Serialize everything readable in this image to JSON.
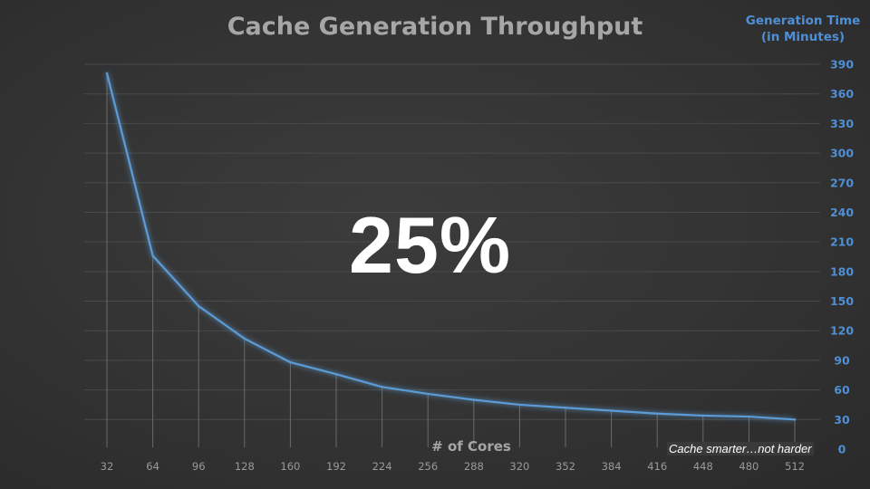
{
  "chart_data": {
    "type": "line",
    "title": "Cache Generation Throughput",
    "xlabel": "# of Cores",
    "ylabel_line1": "Generation Time",
    "ylabel_line2": "(in Minutes)",
    "y_axis_position": "right",
    "ylim": [
      0,
      390
    ],
    "yticks": [
      0,
      30,
      60,
      90,
      120,
      150,
      180,
      210,
      240,
      270,
      300,
      330,
      360,
      390
    ],
    "categories": [
      "32",
      "64",
      "96",
      "128",
      "160",
      "192",
      "224",
      "256",
      "288",
      "320",
      "352",
      "384",
      "416",
      "448",
      "480",
      "512"
    ],
    "values": [
      381,
      196,
      145,
      112,
      88,
      76,
      63,
      56,
      50,
      45,
      42,
      39,
      36,
      34,
      33,
      30
    ],
    "grid": true,
    "series_color": "#5b9bd5"
  },
  "annotations": {
    "big_text": "25%",
    "note": "Cache smarter…not harder"
  }
}
